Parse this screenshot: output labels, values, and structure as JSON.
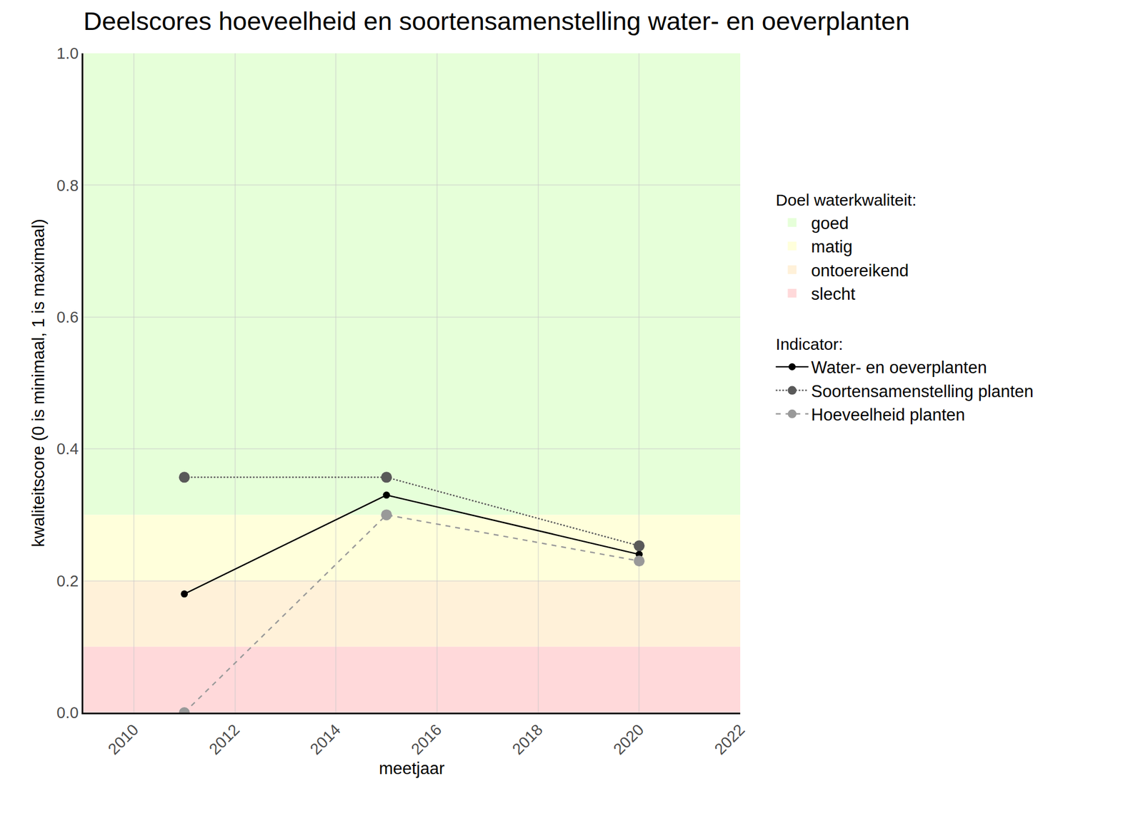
{
  "chart_data": {
    "type": "line",
    "title": "Deelscores hoeveelheid en soortensamenstelling water- en oeverplanten",
    "x_label": "meetjaar",
    "y_label": "kwaliteitscore (0 is minimaal, 1 is maximaal)",
    "x": [
      2011,
      2015,
      2020
    ],
    "series": [
      {
        "name": "Water- en oeverplanten",
        "color": "#000000",
        "marker": "circle",
        "line_style": "solid",
        "values": [
          0.18,
          0.33,
          0.24
        ]
      },
      {
        "name": "Soortensamenstelling planten",
        "color": "#595959",
        "marker": "circle",
        "line_style": "dot",
        "values": [
          0.357,
          0.357,
          0.253
        ]
      },
      {
        "name": "Hoeveelheid planten",
        "color": "#999999",
        "marker": "circle",
        "line_style": "dash",
        "values": [
          0.0,
          0.3,
          0.23
        ]
      }
    ],
    "legend_title": "Indicator:",
    "band_legend_title": "Doel waterkwaliteit:",
    "bands": [
      {
        "label": "goed",
        "from": 0.3,
        "to": 1.0,
        "color": "#e6ffd9"
      },
      {
        "label": "matig",
        "from": 0.2,
        "to": 0.3,
        "color": "#ffffdb"
      },
      {
        "label": "ontoereikend",
        "from": 0.1,
        "to": 0.2,
        "color": "#fff1d9"
      },
      {
        "label": "slecht",
        "from": 0.0,
        "to": 0.1,
        "color": "#ffd9da"
      }
    ],
    "xlim": [
      2009,
      2022
    ],
    "xticks": [
      2010,
      2012,
      2014,
      2016,
      2018,
      2020,
      2022
    ],
    "ylim": [
      0,
      1
    ],
    "yticks": [
      {
        "value": 0,
        "label": "0.0"
      },
      0.2,
      0.4,
      0.6,
      0.8,
      {
        "value": 1,
        "label": "1.0"
      }
    ],
    "grid": true,
    "legend": "right"
  }
}
